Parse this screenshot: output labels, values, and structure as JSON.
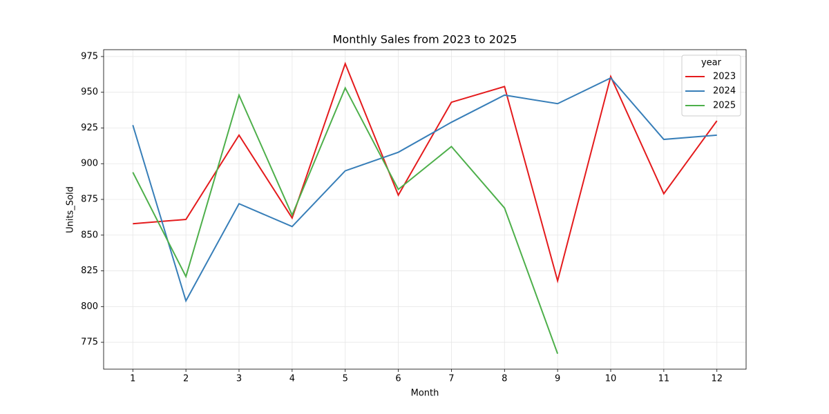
{
  "chart_data": {
    "type": "line",
    "title": "Monthly Sales from 2023 to 2025",
    "x_label": "Month",
    "y_label": "Units_Sold",
    "x": [
      1,
      2,
      3,
      4,
      5,
      6,
      7,
      8,
      9,
      10,
      11,
      12
    ],
    "series": [
      {
        "name": "2023",
        "color": "#e41a1c",
        "values": [
          858,
          861,
          920,
          862,
          970,
          878,
          943,
          954,
          818,
          961,
          879,
          930
        ]
      },
      {
        "name": "2024",
        "color": "#377eb8",
        "values": [
          927,
          804,
          872,
          856,
          895,
          908,
          929,
          948,
          942,
          960,
          917,
          920
        ]
      },
      {
        "name": "2025",
        "color": "#4daf4a",
        "values": [
          894,
          821,
          948,
          864,
          953,
          882,
          912,
          869,
          767,
          null,
          null,
          null
        ]
      }
    ],
    "xlim": [
      0.45,
      12.55
    ],
    "xticks": [
      1,
      2,
      3,
      4,
      5,
      6,
      7,
      8,
      9,
      10,
      11,
      12
    ],
    "ylim": [
      756.2,
      979.8
    ],
    "yticks": [
      775,
      800,
      825,
      850,
      875,
      900,
      925,
      950,
      975
    ],
    "grid": true,
    "legend_title": "year",
    "legend_position": "upper right"
  }
}
